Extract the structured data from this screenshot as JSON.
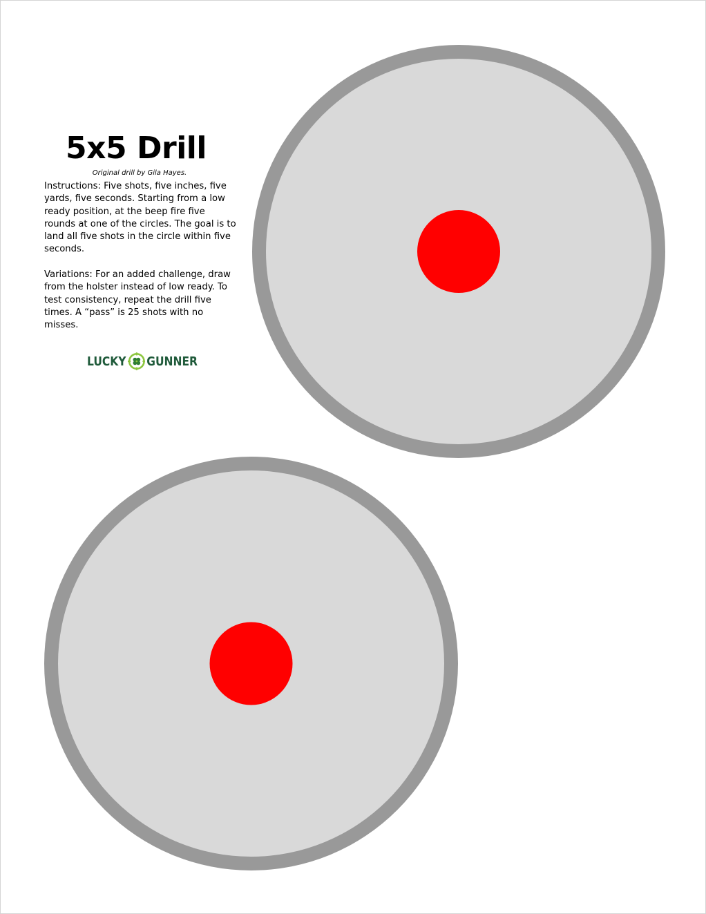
{
  "page": {
    "title": "5x5 Drill",
    "credit": "Original drill by Gila Hayes.",
    "instructions": "Instructions: Five shots, five inches, five yards, five seconds. Starting from a low ready position, at the beep fire five rounds at one of the circles. The goal is to land all five shots in the circle within five seconds.",
    "variations": "Variations: For an added challenge, draw from the holster instead of low ready. To test consistency, repeat the drill five times. A “pass” is 25 shots with no misses."
  },
  "logo": {
    "word_left": "LUCKY",
    "word_right": "GUNNER",
    "icon": "clover-crosshair-icon",
    "colors": {
      "text": "#1f5a3a",
      "ring": "#8dc63f",
      "clover": "#2e7d32"
    }
  },
  "targets": {
    "count": 2,
    "colors": {
      "outer_ring": "#999999",
      "face": "#d9d9d9",
      "bullseye": "#ff0000"
    }
  }
}
